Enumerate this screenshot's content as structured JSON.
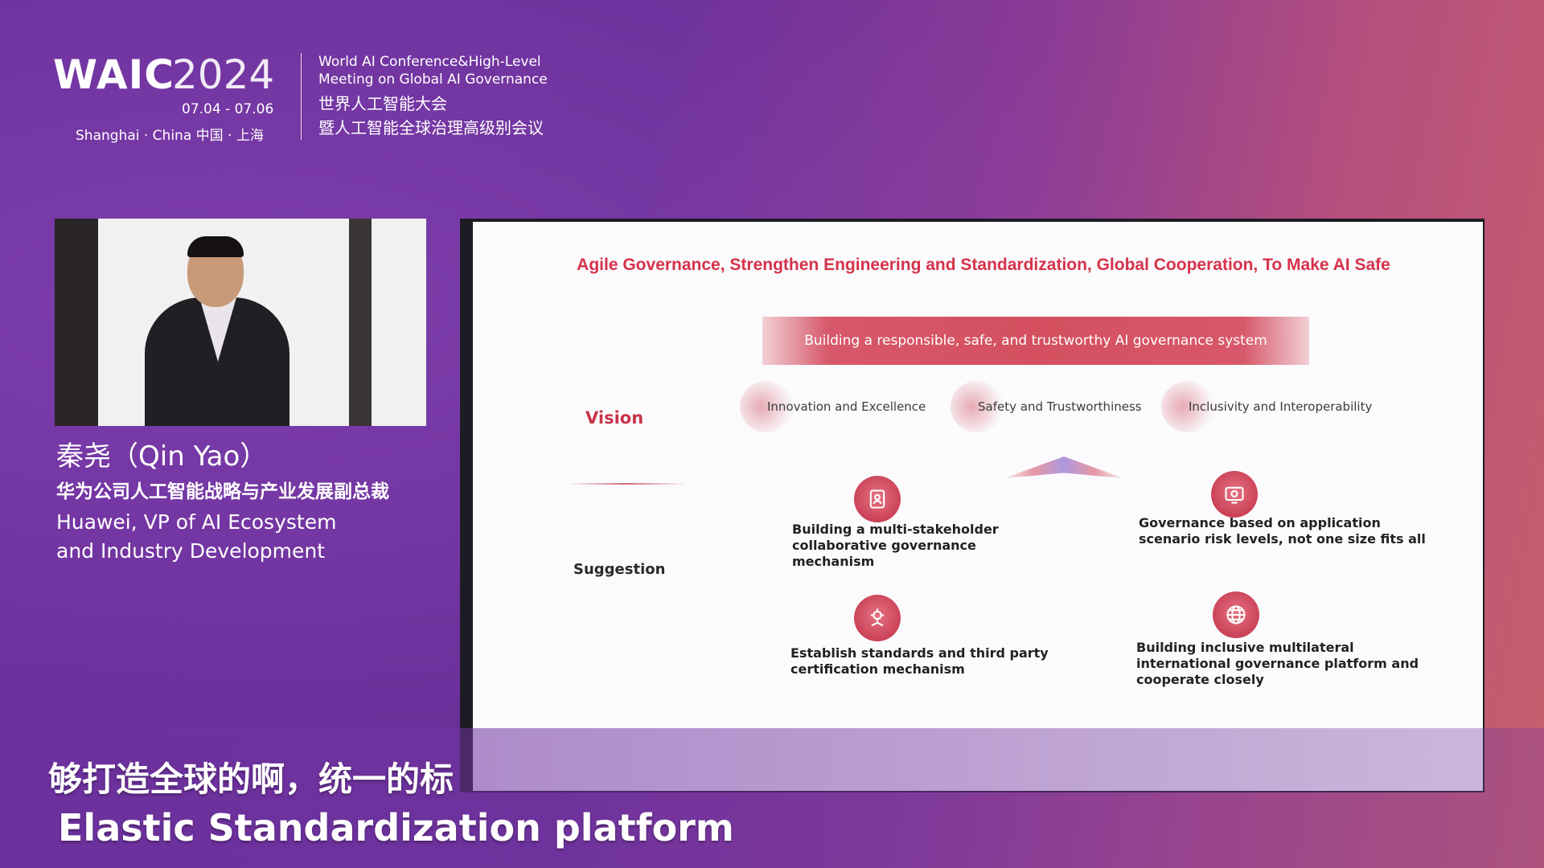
{
  "header": {
    "logo_waic": "WAIC",
    "logo_year": "2024",
    "dates": "07.04 - 07.06",
    "city": "Shanghai · China  中国 · 上海",
    "conference_en_line1": "World AI Conference&High-Level",
    "conference_en_line2": "Meeting on Global AI Governance",
    "conference_cn_line1": "世界人工智能大会",
    "conference_cn_line2": "暨人工智能全球治理高级别会议"
  },
  "speaker": {
    "name": "秦尧（Qin Yao）",
    "title_cn": "华为公司人工智能战略与产业发展副总裁",
    "title_en_line1": "Huawei, VP of AI Ecosystem",
    "title_en_line2": "and Industry Development"
  },
  "slide": {
    "title": "Agile Governance, Strengthen Engineering and Standardization, Global Cooperation, To Make AI Safe",
    "banner": "Building a responsible, safe, and trustworthy AI governance system",
    "vision_label": "Vision",
    "suggestion_label": "Suggestion",
    "vision_items": [
      "Innovation and Excellence",
      "Safety and Trustworthiness",
      "Inclusivity and Interoperability"
    ],
    "suggestions": [
      {
        "text": "Building a multi-stakeholder collaborative governance mechanism",
        "icon": "stakeholder-badge-icon"
      },
      {
        "text": "Governance based on application scenario risk levels, not one size fits all",
        "icon": "scenario-screen-icon"
      },
      {
        "text": "Establish standards and third party certification mechanism",
        "icon": "certification-gear-icon"
      },
      {
        "text": "Building inclusive multilateral international governance platform and cooperate closely",
        "icon": "globe-icon"
      }
    ],
    "accent_color": "#d6324a"
  },
  "subtitles": {
    "cn": "够打造全球的啊，统一的标",
    "en": "Elastic Standardization platform"
  }
}
